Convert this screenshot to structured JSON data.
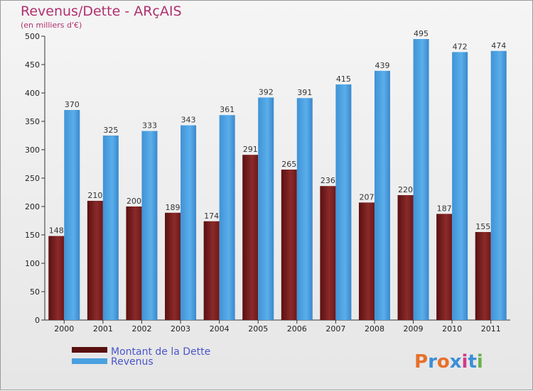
{
  "colors": {
    "debt": "#7a1f1f",
    "revenue": "#4aa0e0",
    "title": "#b0306e",
    "legend": "#4a55c8"
  },
  "logo": "Proxiti",
  "chart_data": {
    "type": "bar",
    "title": "Revenus/Dette - ARçAIS",
    "subtitle": "(en milliers d'€)",
    "categories": [
      "2000",
      "2001",
      "2002",
      "2003",
      "2004",
      "2005",
      "2006",
      "2007",
      "2008",
      "2009",
      "2010",
      "2011"
    ],
    "series": [
      {
        "name": "Montant de la Dette",
        "color": "#7a1f1f",
        "values": [
          148,
          210,
          200,
          189,
          174,
          291,
          265,
          236,
          207,
          220,
          187,
          155
        ]
      },
      {
        "name": "Revenus",
        "color": "#4aa0e0",
        "values": [
          370,
          325,
          333,
          343,
          361,
          392,
          391,
          415,
          439,
          495,
          472,
          474
        ]
      }
    ],
    "ylim": [
      0,
      500
    ],
    "yticks": [
      0,
      50,
      100,
      150,
      200,
      250,
      300,
      350,
      400,
      450,
      500
    ],
    "grid": false,
    "legend": "bottom-left"
  }
}
